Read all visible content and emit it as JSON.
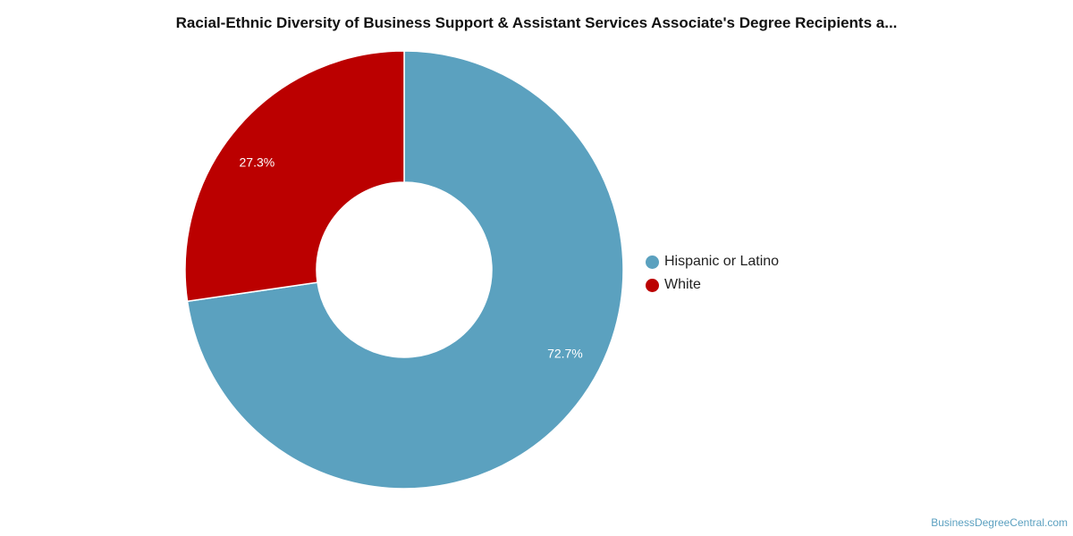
{
  "chart_data": {
    "type": "pie",
    "title": "Racial-Ethnic Diversity of Business Support & Assistant Services Associate's Degree Recipients a...",
    "categories": [
      "Hispanic or Latino",
      "White"
    ],
    "values": [
      72.7,
      27.3
    ],
    "data_labels": [
      "72.7%",
      "27.3%"
    ],
    "colors": [
      "#5ba1bf",
      "#bb0000"
    ],
    "donut": true,
    "legend_position": "right"
  },
  "legend": {
    "items": [
      {
        "label": "Hispanic or Latino",
        "color": "#5ba1bf"
      },
      {
        "label": "White",
        "color": "#bb0000"
      }
    ]
  },
  "watermark": "BusinessDegreeCentral.com"
}
